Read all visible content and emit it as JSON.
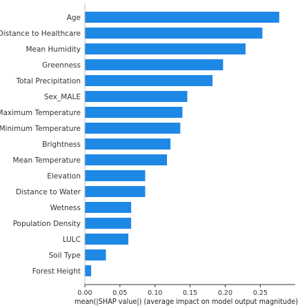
{
  "chart_data": {
    "type": "bar",
    "orientation": "horizontal",
    "categories": [
      "Age",
      "Distance to Healthcare",
      "Mean Humidity",
      "Greenness",
      "Total Precipitation",
      "Sex_MALE",
      "Maximum Temperature",
      "Minimum Temperature",
      "Brightness",
      "Mean Temperature",
      "Elevation",
      "Distance to Water",
      "Wetness",
      "Population Density",
      "LULC",
      "Soil Type",
      "Forest Height"
    ],
    "values": [
      0.277,
      0.253,
      0.229,
      0.197,
      0.182,
      0.146,
      0.139,
      0.136,
      0.122,
      0.117,
      0.086,
      0.086,
      0.066,
      0.066,
      0.062,
      0.03,
      0.009
    ],
    "xlabel": "mean(|SHAP value|) (average impact on model output magnitude)",
    "ylabel": "",
    "title": "",
    "xlim": [
      0,
      0.29
    ],
    "xticks": [
      0.0,
      0.05,
      0.1,
      0.15,
      0.2,
      0.25
    ],
    "xtick_labels": [
      "0.00",
      "0.05",
      "0.10",
      "0.15",
      "0.20",
      "0.25"
    ],
    "bar_color": "#1E88E5",
    "grid": false,
    "legend": "none"
  }
}
